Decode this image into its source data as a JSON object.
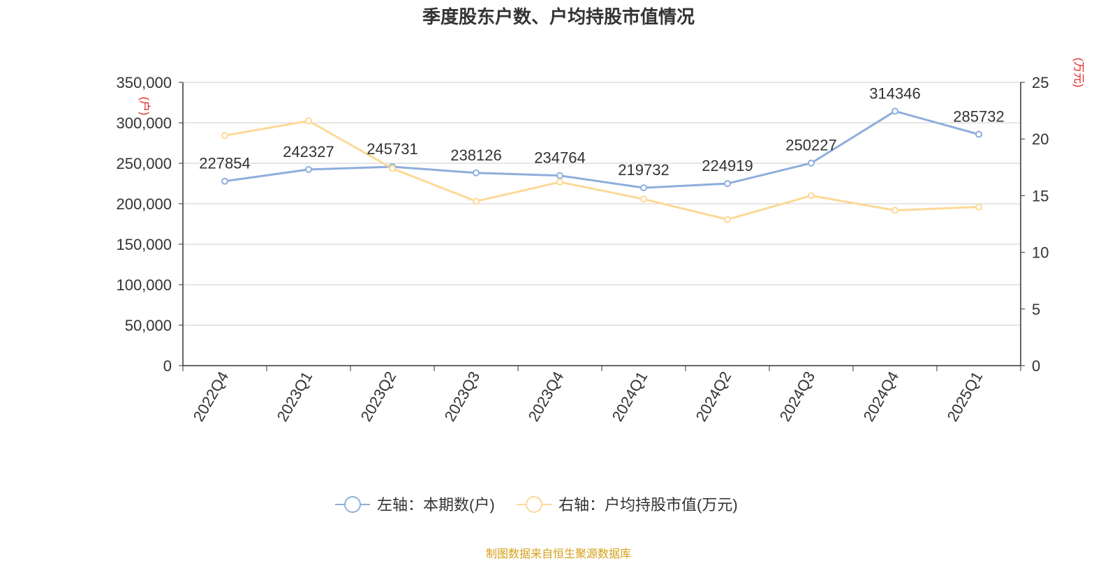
{
  "chart_data": {
    "type": "line",
    "title": "季度股东户数、户均持股市值情况",
    "categories": [
      "2022Q4",
      "2023Q1",
      "2023Q2",
      "2023Q3",
      "2023Q4",
      "2024Q1",
      "2024Q2",
      "2024Q3",
      "2024Q4",
      "2025Q1"
    ],
    "left_axis": {
      "unit_label": "(户)",
      "ylim": [
        0,
        350000
      ],
      "ticks": [
        0,
        50000,
        100000,
        150000,
        200000,
        250000,
        300000,
        350000
      ],
      "tick_labels": [
        "0",
        "50,000",
        "100,000",
        "150,000",
        "200,000",
        "250,000",
        "300,000",
        "350,000"
      ]
    },
    "right_axis": {
      "unit_label": "(万元)",
      "ylim": [
        0,
        25
      ],
      "ticks": [
        0,
        5,
        10,
        15,
        20,
        25
      ],
      "tick_labels": [
        "0",
        "5",
        "10",
        "15",
        "20",
        "25"
      ]
    },
    "series": [
      {
        "name": "左轴：本期数(户)",
        "axis": "left",
        "color": "#8eaedc",
        "values": [
          227854,
          242327,
          245731,
          238126,
          234764,
          219732,
          224919,
          250227,
          314346,
          285732
        ],
        "data_labels": [
          "227854",
          "242327",
          "245731",
          "238126",
          "234764",
          "219732",
          "224919",
          "250227",
          "314346",
          "285732"
        ]
      },
      {
        "name": "右轴：户均持股市值(万元)",
        "axis": "right",
        "color": "#fcd997",
        "values": [
          20.3,
          21.6,
          17.4,
          14.5,
          16.2,
          14.7,
          12.9,
          15.0,
          13.7,
          14.0
        ]
      }
    ],
    "grid": true,
    "legend_position": "bottom-center",
    "colors": {
      "axis_unit": "#e02020",
      "grid": "#cccccc",
      "axis": "#333333",
      "text": "#333333",
      "source": "#d4a017"
    }
  },
  "source_text": "制图数据来自恒生聚源数据库"
}
